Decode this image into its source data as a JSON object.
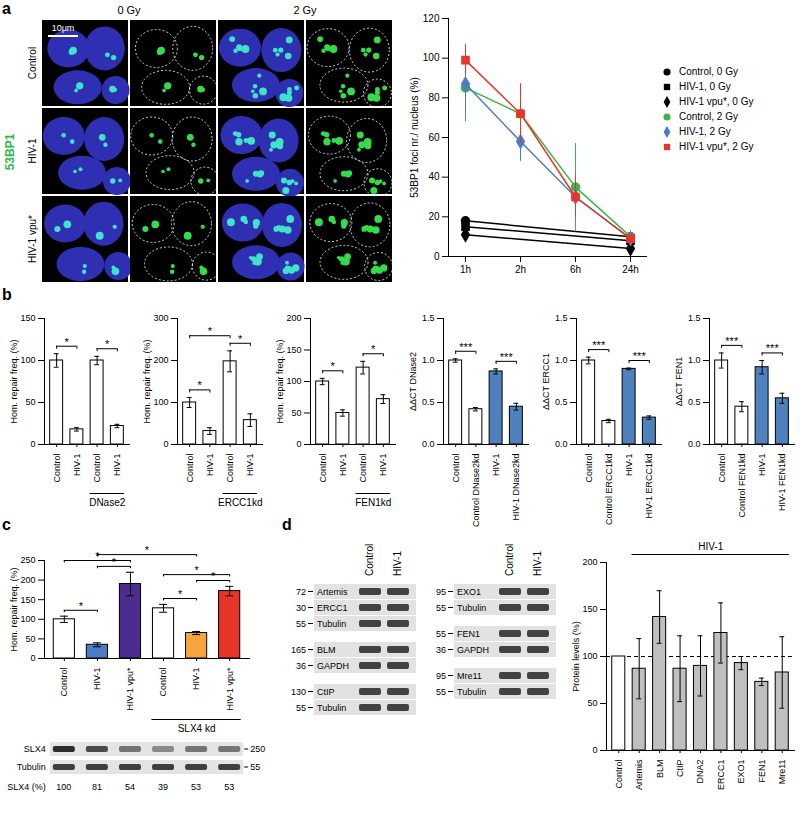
{
  "panels": [
    "a",
    "b",
    "c",
    "d"
  ],
  "micrographs": {
    "panel": "a",
    "stain": "53BP1",
    "columns": [
      "0 Gy",
      "2 Gy"
    ],
    "rows": [
      "Control",
      "HIV-1",
      "HIV-1 vpu*"
    ],
    "scale_bar": "10μm"
  },
  "chart_data": [
    {
      "type": "line",
      "y_label": "53BP1 foci nr./ nucleus (%)",
      "categories": [
        "1h",
        "2h",
        "6h",
        "24h"
      ],
      "ylim": [
        0,
        120
      ],
      "yticks": [
        0,
        20,
        40,
        60,
        80,
        100,
        120
      ],
      "legend": "right",
      "series": [
        {
          "name": "Control, 0 Gy",
          "color": "#000000",
          "marker": "circle",
          "x": [
            "1h",
            "24h"
          ],
          "values": [
            18,
            10
          ]
        },
        {
          "name": "HIV-1, 0 Gy",
          "color": "#000000",
          "marker": "square",
          "x": [
            "1h",
            "24h"
          ],
          "values": [
            15,
            8
          ]
        },
        {
          "name": "HIV-1 vpu*, 0 Gy",
          "color": "#000000",
          "marker": "diamond",
          "x": [
            "1h",
            "24h"
          ],
          "values": [
            11,
            4
          ]
        },
        {
          "name": "Control, 2 Gy",
          "color": "#3cb54a",
          "marker": "circle",
          "x": [
            "1h",
            "2h",
            "6h",
            "24h"
          ],
          "values": [
            85,
            72,
            35,
            10
          ],
          "errors": [
            17,
            15,
            22,
            3
          ]
        },
        {
          "name": "HIV-1, 2 Gy",
          "color": "#4a7dc4",
          "marker": "diamond",
          "x": [
            "1h",
            "2h",
            "6h",
            "24h"
          ],
          "values": [
            87,
            58,
            30,
            9
          ],
          "errors": [
            16,
            10,
            12,
            3
          ]
        },
        {
          "name": "HIV-1 vpu*, 2 Gy",
          "color": "#e8352a",
          "marker": "square",
          "x": [
            "1h",
            "2h",
            "6h",
            "24h"
          ],
          "values": [
            99,
            72,
            30,
            9
          ],
          "errors": [
            8,
            15,
            10,
            2
          ]
        }
      ]
    },
    {
      "type": "bar",
      "y_label": "Hom. repair freq. (%)",
      "categories": [
        "Control",
        "HIV-1",
        "Control",
        "HIV-1"
      ],
      "values": [
        100,
        18,
        100,
        22
      ],
      "errors": [
        8,
        2,
        5,
        2
      ],
      "colors": [
        "#ffffff",
        "#ffffff",
        "#ffffff",
        "#ffffff"
      ],
      "ylim": [
        0,
        150
      ],
      "yticks": [
        0,
        50,
        100,
        150
      ],
      "significance": [
        {
          "from": 0,
          "to": 1,
          "label": "*"
        },
        {
          "from": 2,
          "to": 3,
          "label": "*"
        }
      ],
      "groups": [
        {
          "label": "DNase2",
          "from": 2,
          "to": 3
        }
      ]
    },
    {
      "type": "bar",
      "y_label": "Hom. repair freq. (%)",
      "categories": [
        "Control",
        "HIV-1",
        "Control",
        "HIV-1"
      ],
      "values": [
        100,
        32,
        198,
        58
      ],
      "errors": [
        12,
        8,
        25,
        15
      ],
      "colors": [
        "#ffffff",
        "#ffffff",
        "#ffffff",
        "#ffffff"
      ],
      "ylim": [
        0,
        300
      ],
      "yticks": [
        0,
        100,
        200,
        300
      ],
      "significance": [
        {
          "from": 0,
          "to": 1,
          "label": "*"
        },
        {
          "from": 0,
          "to": 2,
          "label": "*"
        },
        {
          "from": 2,
          "to": 3,
          "label": "*"
        }
      ],
      "groups": [
        {
          "label": "ERCC1kd",
          "from": 2,
          "to": 3
        }
      ]
    },
    {
      "type": "bar",
      "y_label": "Hom. repair freq. (%)",
      "categories": [
        "Control",
        "HIV-1",
        "Control",
        "HIV-1"
      ],
      "values": [
        100,
        50,
        122,
        72
      ],
      "errors": [
        5,
        5,
        10,
        7
      ],
      "colors": [
        "#ffffff",
        "#ffffff",
        "#ffffff",
        "#ffffff"
      ],
      "ylim": [
        0,
        200
      ],
      "yticks": [
        0,
        50,
        100,
        150,
        200
      ],
      "significance": [
        {
          "from": 0,
          "to": 1,
          "label": "*"
        },
        {
          "from": 2,
          "to": 3,
          "label": "*"
        }
      ],
      "groups": [
        {
          "label": "FEN1kd",
          "from": 2,
          "to": 3
        }
      ]
    },
    {
      "type": "bar",
      "y_label": "ΔΔCT DNase2",
      "categories": [
        "Control",
        "Control DNase2kd",
        "HIV-1",
        "HIV-1 DNase2kd"
      ],
      "values": [
        1.0,
        0.42,
        0.87,
        0.45
      ],
      "errors": [
        0.02,
        0.02,
        0.03,
        0.04
      ],
      "colors": [
        "#ffffff",
        "#ffffff",
        "#4f81bd",
        "#4f81bd"
      ],
      "ylim": [
        0,
        1.5
      ],
      "yticks": [
        {
          "value": 0,
          "label": "0.0"
        },
        0.5,
        {
          "value": 1,
          "label": "1.0"
        },
        1.5
      ],
      "significance": [
        {
          "from": 0,
          "to": 1,
          "label": "***"
        },
        {
          "from": 2,
          "to": 3,
          "label": "***"
        }
      ]
    },
    {
      "type": "bar",
      "y_label": "ΔΔCT ERCC1",
      "categories": [
        "Control",
        "Control ERCC1kd",
        "HIV-1",
        "HIV-1 ERCC1kd"
      ],
      "values": [
        1.0,
        0.28,
        0.9,
        0.32
      ],
      "errors": [
        0.04,
        0.02,
        0.01,
        0.02
      ],
      "colors": [
        "#ffffff",
        "#ffffff",
        "#4f81bd",
        "#4f81bd"
      ],
      "ylim": [
        0,
        1.5
      ],
      "yticks": [
        {
          "value": 0,
          "label": "0.0"
        },
        0.5,
        {
          "value": 1,
          "label": "1.0"
        },
        1.5
      ],
      "significance": [
        {
          "from": 0,
          "to": 1,
          "label": "***"
        },
        {
          "from": 2,
          "to": 3,
          "label": "***"
        }
      ]
    },
    {
      "type": "bar",
      "y_label": "ΔΔCT FEN1",
      "categories": [
        "Control",
        "Control FEN1kd",
        "HIV-1",
        "HIV-1 FEN1kd"
      ],
      "values": [
        1.0,
        0.45,
        0.92,
        0.55
      ],
      "errors": [
        0.09,
        0.06,
        0.08,
        0.06
      ],
      "colors": [
        "#ffffff",
        "#ffffff",
        "#4f81bd",
        "#4f81bd"
      ],
      "ylim": [
        0,
        1.5
      ],
      "yticks": [
        {
          "value": 0,
          "label": "0.0"
        },
        0.5,
        {
          "value": 1,
          "label": "1.0"
        },
        1.5
      ],
      "significance": [
        {
          "from": 0,
          "to": 1,
          "label": "***"
        },
        {
          "from": 2,
          "to": 3,
          "label": "***"
        }
      ]
    },
    {
      "type": "bar",
      "y_label": "Hom. repair freq. (%)",
      "categories": [
        "Control",
        "HIV-1",
        "HIV-1 vpu*",
        "Control",
        "HIV-1",
        "HIV-1 vpu*"
      ],
      "values": [
        100,
        35,
        190,
        128,
        65,
        172
      ],
      "errors": [
        8,
        5,
        30,
        10,
        4,
        12
      ],
      "colors": [
        "#ffffff",
        "#4a7dc4",
        "#4b2d8f",
        "#ffffff",
        "#f5a53c",
        "#e8352a"
      ],
      "ylim": [
        0,
        250
      ],
      "yticks": [
        0,
        50,
        100,
        150,
        200,
        250
      ],
      "significance": [
        {
          "from": 0,
          "to": 1,
          "label": "*"
        },
        {
          "from": 1,
          "to": 2,
          "label": "*"
        },
        {
          "from": 0,
          "to": 2,
          "label": "*"
        },
        {
          "from": 3,
          "to": 4,
          "label": "*"
        },
        {
          "from": 4,
          "to": 5,
          "label": "*"
        },
        {
          "from": 3,
          "to": 5,
          "label": "*"
        },
        {
          "from": 1,
          "to": 4,
          "label": "*"
        }
      ],
      "groups": [
        {
          "label": "SLX4 kd",
          "from": 3,
          "to": 5
        }
      ]
    },
    {
      "type": "bar",
      "y_label": "Protein levels (%)",
      "categories": [
        "Control",
        "Artemis",
        "BLM",
        "CtIP",
        "DNA2",
        "ERCC1",
        "EXO1",
        "FEN1",
        "Mre11"
      ],
      "values": [
        100,
        87,
        142,
        87,
        90,
        125,
        93,
        73,
        83
      ],
      "errors": [
        null,
        32,
        28,
        35,
        32,
        32,
        7,
        4,
        38
      ],
      "colors": [
        "#ffffff",
        "#bfbfbf",
        "#bfbfbf",
        "#bfbfbf",
        "#bfbfbf",
        "#bfbfbf",
        "#bfbfbf",
        "#bfbfbf",
        "#bfbfbf"
      ],
      "ylim": [
        0,
        200
      ],
      "yticks": [
        0,
        50,
        100,
        150,
        200
      ],
      "reference_line": {
        "value": 100,
        "line_style": "dashed"
      },
      "header_groups": [
        {
          "label": "HIV-1",
          "from": 1,
          "to": 8
        }
      ]
    }
  ],
  "blots_c": {
    "panel": "c",
    "rows": [
      {
        "label": "SLX4",
        "mw": 250
      },
      {
        "label": "Tubulin",
        "mw": 55
      }
    ],
    "quantity_label": "SLX4 (%)",
    "quantities": [
      100,
      81,
      54,
      39,
      53,
      53
    ]
  },
  "blots_d": {
    "panel": "d",
    "lanes": [
      "Control",
      "HIV-1"
    ],
    "columns": [
      [
        [
          {
            "label": "Artemis",
            "mw": 72
          },
          {
            "label": "ERCC1",
            "mw": 30
          },
          {
            "label": "Tubulin",
            "mw": 55
          }
        ],
        [
          {
            "label": "BLM",
            "mw": 165
          },
          {
            "label": "GAPDH",
            "mw": 36
          }
        ],
        [
          {
            "label": "CtIP",
            "mw": 130
          },
          {
            "label": "Tubulin",
            "mw": 55
          }
        ]
      ],
      [
        [
          {
            "label": "EXO1",
            "mw": 95
          },
          {
            "label": "Tubulin",
            "mw": 55
          }
        ],
        [
          {
            "label": "FEN1",
            "mw": 55
          },
          {
            "label": "GAPDH",
            "mw": 36
          }
        ],
        [
          {
            "label": "Mre11",
            "mw": 95
          },
          {
            "label": "Tubulin",
            "mw": 55
          }
        ]
      ]
    ]
  }
}
